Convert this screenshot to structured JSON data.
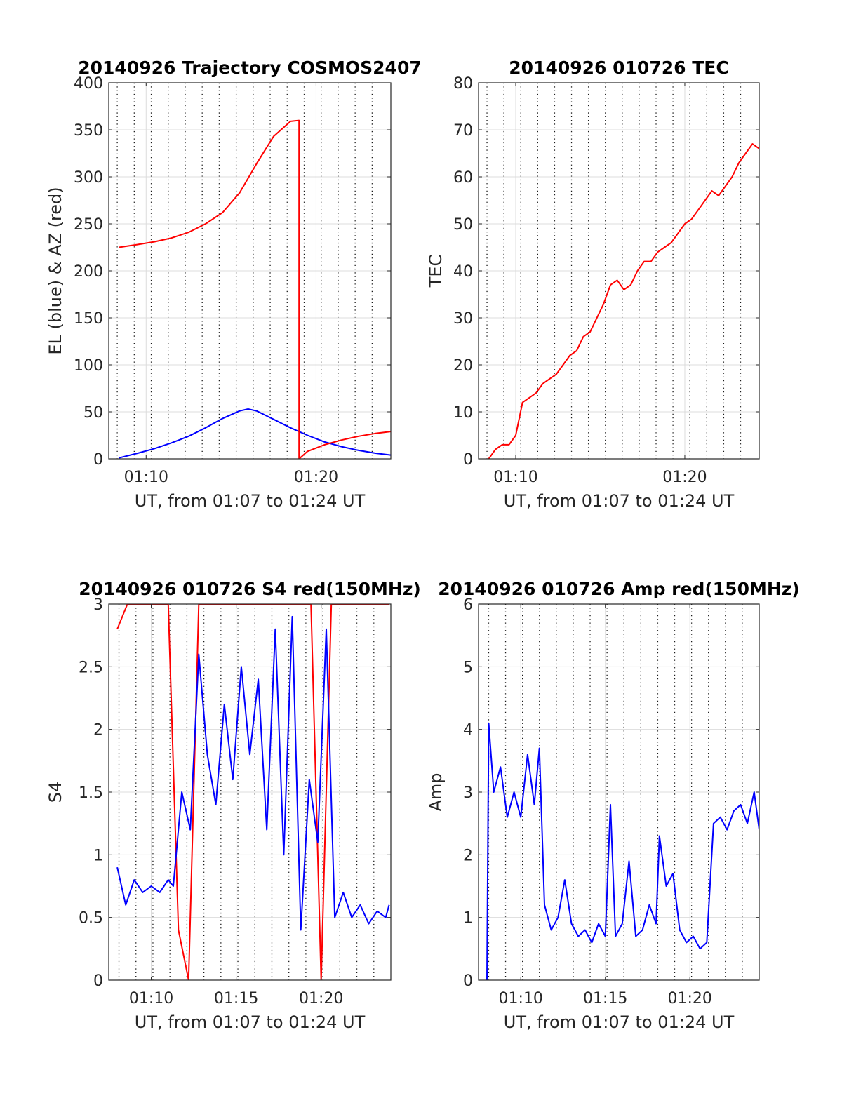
{
  "chart_data": [
    {
      "type": "line",
      "title": "20140926 Trajectory COSMOS2407",
      "xlabel": "UT, from 01:07 to 01:24 UT",
      "ylabel": "EL (blue) & AZ (red)",
      "xlim": [
        7.8,
        24.4
      ],
      "ylim": [
        0,
        400
      ],
      "grid": "on",
      "xticks": [
        {
          "v": 10,
          "label": "01:10"
        },
        {
          "v": 20,
          "label": "01:20"
        }
      ],
      "yticks": [
        0,
        50,
        100,
        150,
        200,
        250,
        300,
        350,
        400
      ],
      "minor_xgrid": [
        8.3,
        9.3,
        10.3,
        11.3,
        12.3,
        13.3,
        14.3,
        15.3,
        16.3,
        17.3,
        18.3,
        19.3,
        20.3,
        21.3,
        22.3,
        23.3
      ],
      "series": [
        {
          "color": "#0000ff",
          "x": [
            8.4,
            9.5,
            10.5,
            11.5,
            12.5,
            13.5,
            14.5,
            15.5,
            16.0,
            16.5,
            17.5,
            18.5,
            19.5,
            20.5,
            21.5,
            22.5,
            23.5,
            24.4
          ],
          "y": [
            1,
            6,
            11,
            17,
            24,
            33,
            43,
            51,
            53,
            51,
            42,
            33,
            25,
            18,
            13,
            9,
            6,
            4
          ]
        },
        {
          "color": "#ff0000",
          "x": [
            8.4,
            9.5,
            10.5,
            11.5,
            12.5,
            13.5,
            14.5,
            15.5,
            16.5,
            17.5,
            18.5,
            19.0,
            19.0,
            19.5,
            20.5,
            21.5,
            22.5,
            23.5,
            24.4
          ],
          "y": [
            225,
            228,
            231,
            235,
            241,
            250,
            262,
            283,
            314,
            343,
            359,
            360,
            0,
            8,
            15,
            20,
            24,
            27,
            29
          ]
        }
      ]
    },
    {
      "type": "line",
      "title": "20140926 010726 TEC",
      "xlabel": "UT, from 01:07 to 01:24 UT",
      "ylabel": "TEC",
      "xlim": [
        7.8,
        24.4
      ],
      "ylim": [
        0,
        80
      ],
      "grid": "on",
      "xticks": [
        {
          "v": 10,
          "label": "01:10"
        },
        {
          "v": 20,
          "label": "01:20"
        }
      ],
      "yticks": [
        0,
        10,
        20,
        30,
        40,
        50,
        60,
        70,
        80
      ],
      "minor_xgrid": [
        8.3,
        9.3,
        10.3,
        11.3,
        12.3,
        13.3,
        14.3,
        15.3,
        16.3,
        17.3,
        18.3,
        19.3,
        20.3,
        21.3,
        22.3,
        23.3
      ],
      "series": [
        {
          "color": "#ff0000",
          "x": [
            8.4,
            8.8,
            9.2,
            9.6,
            10.0,
            10.4,
            10.8,
            11.2,
            11.6,
            12.0,
            12.4,
            12.8,
            13.2,
            13.6,
            14.0,
            14.4,
            14.8,
            15.2,
            15.6,
            16.0,
            16.4,
            16.8,
            17.2,
            17.6,
            18.0,
            18.4,
            18.8,
            19.2,
            19.6,
            20.0,
            20.4,
            20.8,
            21.2,
            21.6,
            22.0,
            22.4,
            22.8,
            23.2,
            23.6,
            24.0,
            24.4
          ],
          "y": [
            0,
            2,
            3,
            3,
            5,
            12,
            13,
            14,
            16,
            17,
            18,
            20,
            22,
            23,
            26,
            27,
            30,
            33,
            37,
            38,
            36,
            37,
            40,
            42,
            42,
            44,
            45,
            46,
            48,
            50,
            51,
            53,
            55,
            57,
            56,
            58,
            60,
            63,
            65,
            67,
            66
          ]
        }
      ]
    },
    {
      "type": "line",
      "title": "20140926 010726 S4 red(150MHz)",
      "xlabel": "UT, from 01:07 to 01:24 UT",
      "ylabel": "S4",
      "xlim": [
        7.5,
        24.1
      ],
      "ylim": [
        0,
        3
      ],
      "grid": "on",
      "xticks": [
        {
          "v": 10,
          "label": "01:10"
        },
        {
          "v": 15,
          "label": "01:15"
        },
        {
          "v": 20,
          "label": "01:20"
        }
      ],
      "yticks": [
        0,
        0.5,
        1,
        1.5,
        2,
        2.5,
        3
      ],
      "minor_xgrid": [
        8.1,
        9.1,
        10.1,
        11.1,
        12.1,
        13.1,
        14.1,
        15.1,
        16.1,
        17.1,
        18.1,
        19.1,
        20.1,
        21.1,
        22.1,
        23.1
      ],
      "series": [
        {
          "color": "#ff0000",
          "x": [
            8.0,
            8.6,
            9.2,
            9.8,
            10.4,
            11.0,
            11.6,
            12.2,
            12.8,
            13.4,
            14.0,
            14.6,
            15.2,
            15.8,
            16.4,
            17.0,
            17.6,
            18.2,
            18.8,
            19.4,
            20.0,
            20.6,
            21.2,
            21.8,
            22.4,
            23.0,
            23.6,
            24.0
          ],
          "y": [
            2.8,
            3,
            3,
            3,
            3,
            3,
            0.4,
            0,
            3,
            3,
            3,
            3,
            3,
            3,
            3,
            3,
            3,
            3,
            3,
            3,
            0,
            3,
            3,
            3,
            3,
            3,
            3,
            3
          ]
        },
        {
          "color": "#0000ff",
          "x": [
            8.0,
            8.5,
            9.0,
            9.5,
            10.0,
            10.5,
            11.0,
            11.3,
            11.8,
            12.3,
            12.8,
            13.3,
            13.8,
            14.3,
            14.8,
            15.3,
            15.8,
            16.3,
            16.8,
            17.3,
            17.8,
            18.3,
            18.8,
            19.3,
            19.8,
            20.3,
            20.8,
            21.3,
            21.8,
            22.3,
            22.8,
            23.3,
            23.8,
            24.0
          ],
          "y": [
            0.9,
            0.6,
            0.8,
            0.7,
            0.75,
            0.7,
            0.8,
            0.75,
            1.5,
            1.2,
            2.6,
            1.8,
            1.4,
            2.2,
            1.6,
            2.5,
            1.8,
            2.4,
            1.2,
            2.8,
            1.0,
            2.9,
            0.4,
            1.6,
            1.1,
            2.8,
            0.5,
            0.7,
            0.5,
            0.6,
            0.45,
            0.55,
            0.5,
            0.6
          ]
        }
      ]
    },
    {
      "type": "line",
      "title": "20140926 010726 Amp red(150MHz)",
      "xlabel": "UT, from 01:07 to 01:24 UT",
      "ylabel": "Amp",
      "xlim": [
        7.5,
        24.1
      ],
      "ylim": [
        0,
        6
      ],
      "grid": "on",
      "xticks": [
        {
          "v": 10,
          "label": "01:10"
        },
        {
          "v": 15,
          "label": "01:15"
        },
        {
          "v": 20,
          "label": "01:20"
        }
      ],
      "yticks": [
        0,
        1,
        2,
        3,
        4,
        5,
        6
      ],
      "minor_xgrid": [
        8.1,
        9.1,
        10.1,
        11.1,
        12.1,
        13.1,
        14.1,
        15.1,
        16.1,
        17.1,
        18.1,
        19.1,
        20.1,
        21.1,
        22.1,
        23.1
      ],
      "series": [
        {
          "color": "#0000ff",
          "x": [
            8.0,
            8.1,
            8.4,
            8.8,
            9.2,
            9.6,
            10.0,
            10.4,
            10.8,
            11.1,
            11.4,
            11.8,
            12.2,
            12.6,
            13.0,
            13.4,
            13.8,
            14.2,
            14.6,
            15.0,
            15.3,
            15.6,
            16.0,
            16.4,
            16.8,
            17.2,
            17.6,
            18.0,
            18.2,
            18.6,
            19.0,
            19.4,
            19.8,
            20.2,
            20.6,
            21.0,
            21.4,
            21.8,
            22.2,
            22.6,
            23.0,
            23.4,
            23.8,
            24.1
          ],
          "y": [
            0,
            4.1,
            3.0,
            3.4,
            2.6,
            3.0,
            2.6,
            3.6,
            2.8,
            3.7,
            1.2,
            0.8,
            1.0,
            1.6,
            0.9,
            0.7,
            0.8,
            0.6,
            0.9,
            0.7,
            2.8,
            0.7,
            0.9,
            1.9,
            0.7,
            0.8,
            1.2,
            0.9,
            2.3,
            1.5,
            1.7,
            0.8,
            0.6,
            0.7,
            0.5,
            0.6,
            2.5,
            2.6,
            2.4,
            2.7,
            2.8,
            2.5,
            3.0,
            2.4
          ]
        }
      ]
    }
  ]
}
